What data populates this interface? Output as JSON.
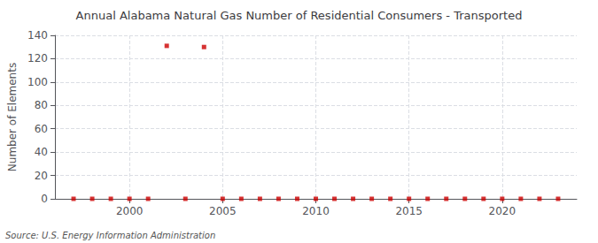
{
  "chart_data": {
    "type": "scatter",
    "title": "Annual Alabama Natural Gas Number of Residential Consumers - Transported",
    "ylabel": "Number of Elements",
    "annotations": [
      "Source: U.S. Energy Information Administration"
    ],
    "x": [
      1997,
      1998,
      1999,
      2000,
      2001,
      2002,
      2003,
      2004,
      2005,
      2006,
      2007,
      2008,
      2009,
      2010,
      2011,
      2012,
      2013,
      2014,
      2015,
      2016,
      2017,
      2018,
      2019,
      2020,
      2021,
      2022,
      2023
    ],
    "values": [
      0,
      0,
      0,
      0,
      0,
      131,
      0,
      130,
      0,
      0,
      0,
      0,
      0,
      0,
      0,
      0,
      0,
      0,
      0,
      0,
      0,
      0,
      0,
      0,
      0,
      0,
      0
    ],
    "color": "#cc0000",
    "marker": "square",
    "xlim": [
      1996,
      2024
    ],
    "xticks": [
      2000,
      2005,
      2010,
      2015,
      2020
    ],
    "ylim": [
      0,
      140
    ],
    "yticks": [
      0,
      20,
      40,
      60,
      80,
      100,
      120,
      140
    ],
    "grid": true
  }
}
